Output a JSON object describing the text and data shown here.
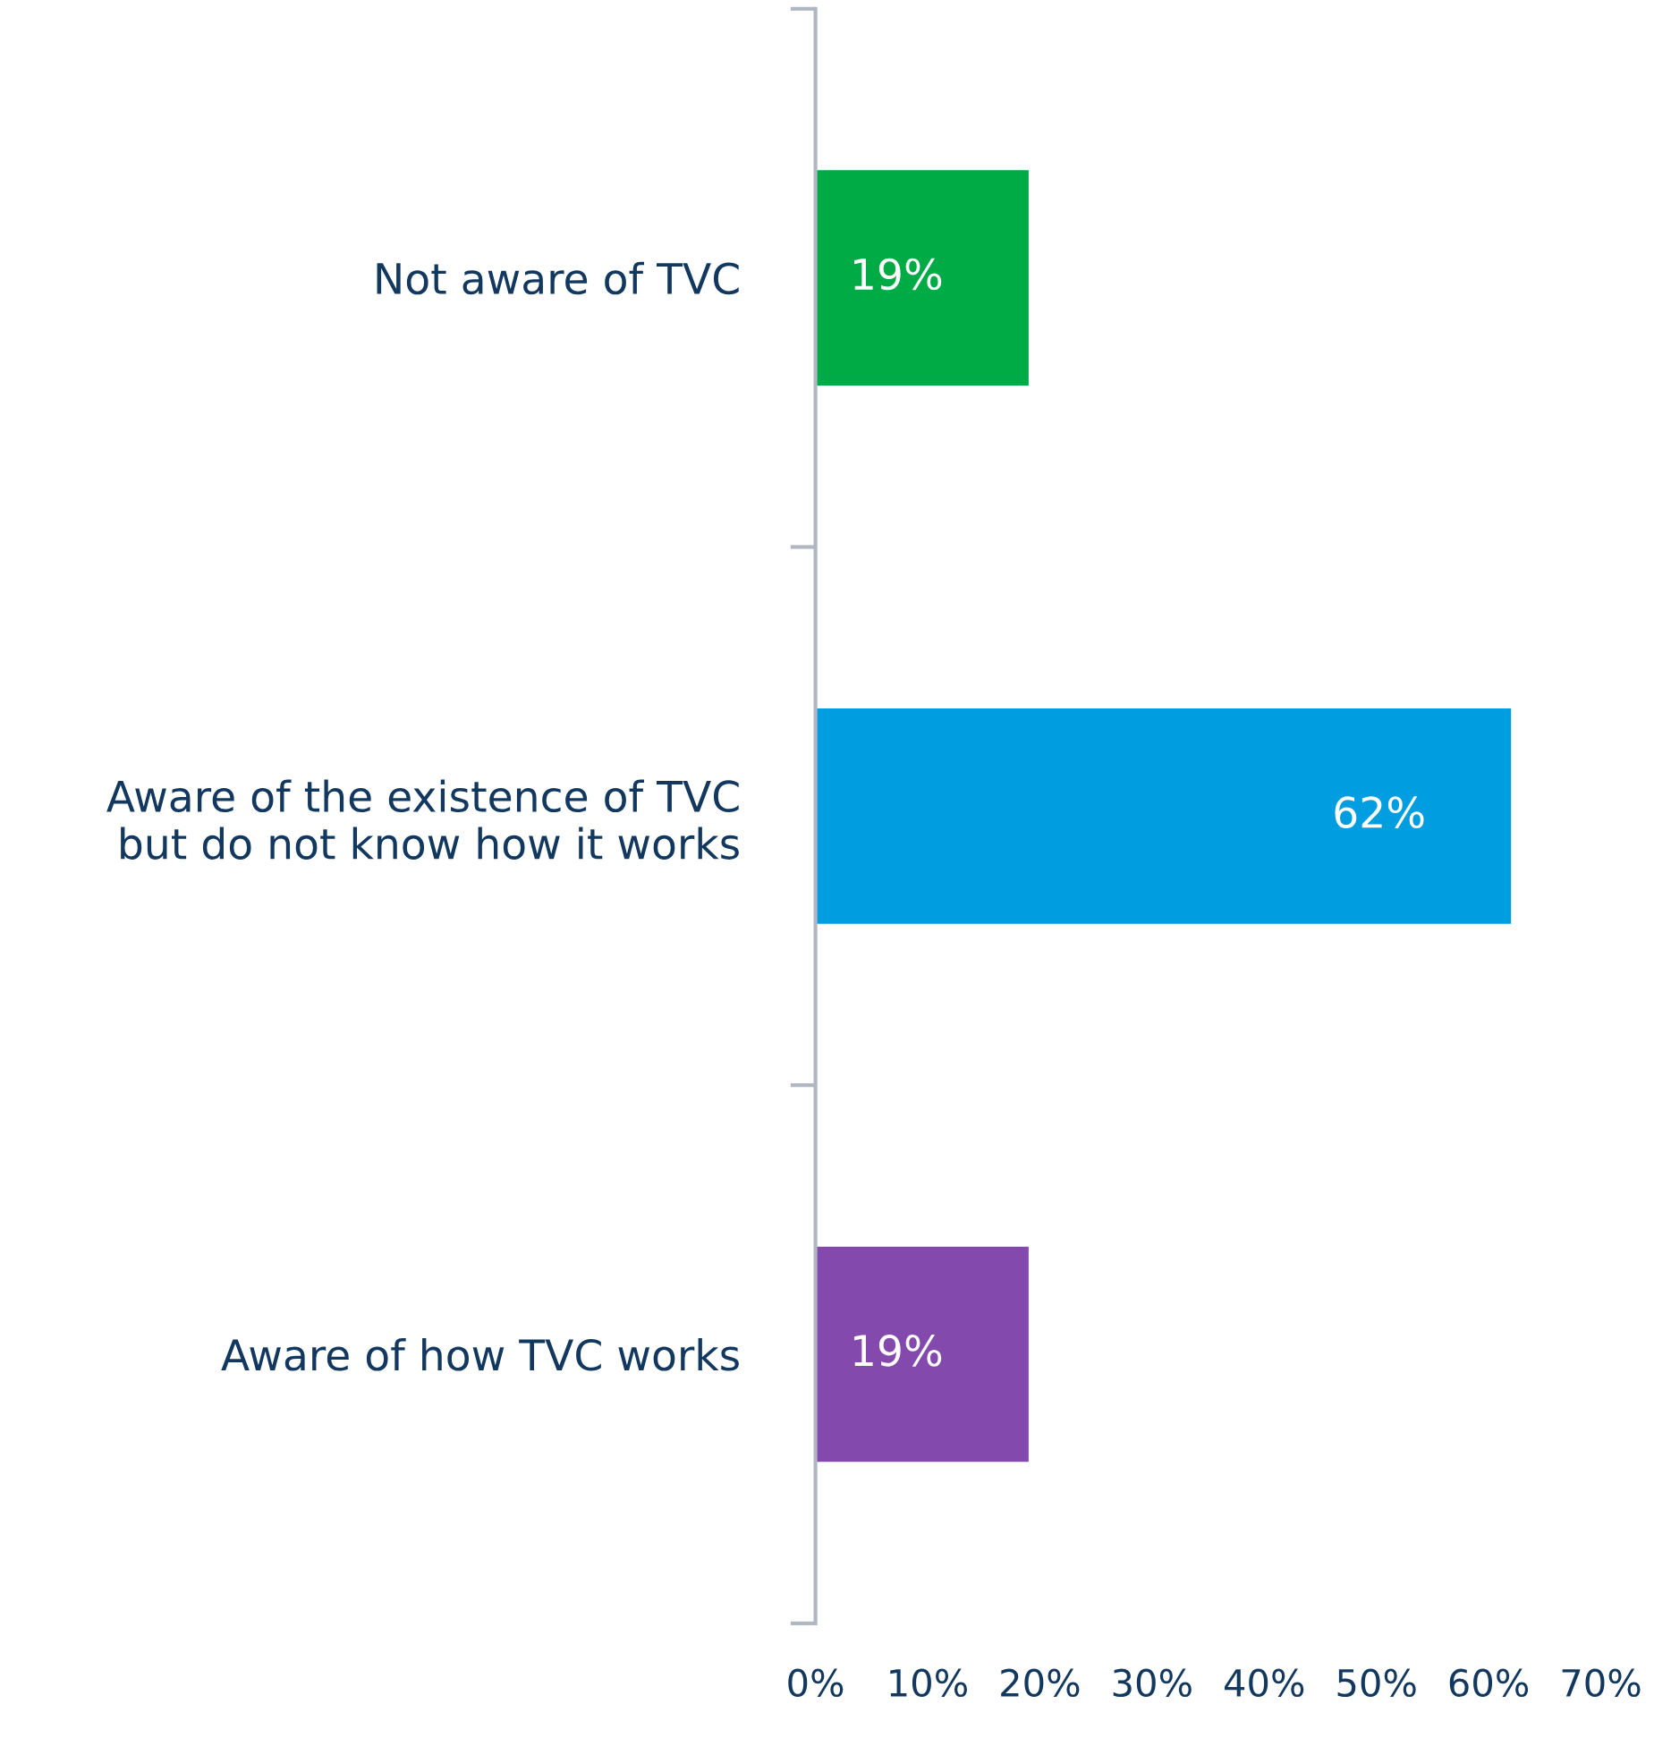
{
  "chart_data": {
    "type": "bar",
    "orientation": "horizontal",
    "categories": [
      "Not aware of TVC",
      "Aware of the existence of TVC\nbut do not know how it works",
      "Aware of how TVC works"
    ],
    "values": [
      19,
      62,
      19
    ],
    "colors": [
      "#00aa44",
      "#009ee0",
      "#8349ad"
    ],
    "value_labels": [
      "19%",
      "62%",
      "19%"
    ],
    "xlim": [
      0,
      70
    ],
    "xticks": [
      {
        "value": 0,
        "label": "0%"
      },
      {
        "value": 10,
        "label": "10%"
      },
      {
        "value": 20,
        "label": "20%"
      },
      {
        "value": 30,
        "label": "30%"
      },
      {
        "value": 40,
        "label": "40%"
      },
      {
        "value": 50,
        "label": "50%"
      },
      {
        "value": 60,
        "label": "60%"
      },
      {
        "value": 70,
        "label": "70%"
      }
    ],
    "grid": false,
    "legend": false
  }
}
